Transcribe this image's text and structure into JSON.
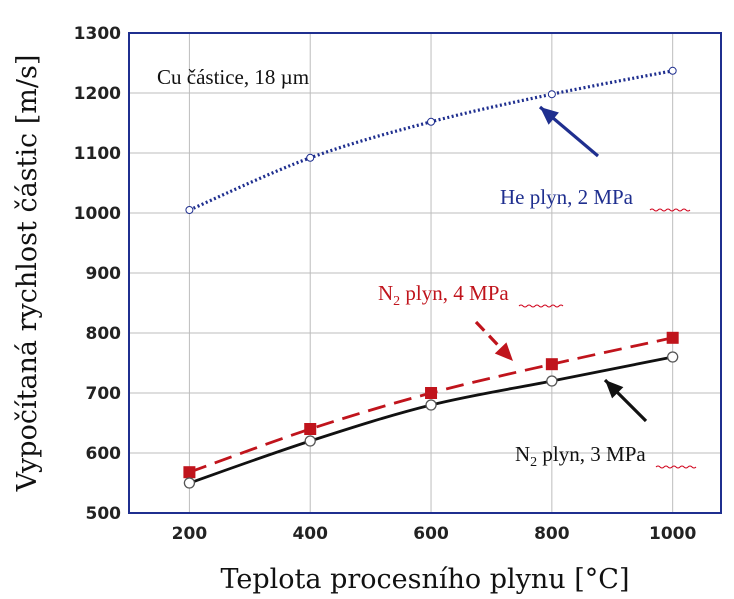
{
  "chart_data": {
    "type": "line",
    "xlabel": "Teplota procesního plynu [°C]",
    "ylabel": "Vypočítaná rychlost částic [m/s]",
    "xlim": [
      100,
      1080
    ],
    "ylim": [
      500,
      1300
    ],
    "x_ticks": [
      "200",
      "400",
      "600",
      "800",
      "1000"
    ],
    "y_ticks": [
      "500",
      "600",
      "700",
      "800",
      "900",
      "1000",
      "1100",
      "1200",
      "1300"
    ],
    "grid": true,
    "x": [
      200,
      400,
      600,
      800,
      1000
    ],
    "series": [
      {
        "name": "He plyn, 2 MPa",
        "values": [
          1005,
          1092,
          1152,
          1198,
          1237
        ],
        "color": "#1f2f8f",
        "style": "dotted",
        "marker": "none"
      },
      {
        "name": "N2 plyn, 4 MPa",
        "values": [
          568,
          640,
          700,
          748,
          792
        ],
        "color": "#c0141c",
        "style": "dashed",
        "marker": "square"
      },
      {
        "name": "N2 plyn, 3 MPa",
        "values": [
          550,
          620,
          680,
          720,
          760
        ],
        "color": "#111111",
        "style": "solid",
        "marker": "circle"
      }
    ],
    "annotations": {
      "material": "Cu částice, 18 µm",
      "he_prefix": "He plyn, 2 ",
      "he_unit": "MPa",
      "n4_base": "N",
      "n4_sub": "2",
      "n4_mid": " plyn, 4 ",
      "n4_unit": "MPa",
      "n3_base": "N",
      "n3_sub": "2",
      "n3_mid": " plyn, 3 ",
      "n3_unit": "MPa"
    },
    "colors": {
      "frame": "#1f2f8f",
      "grid": "#bdbdbd",
      "he": "#1f2f8f",
      "n4": "#c0141c",
      "n3": "#111111",
      "squiggle": "#d0021b"
    }
  }
}
